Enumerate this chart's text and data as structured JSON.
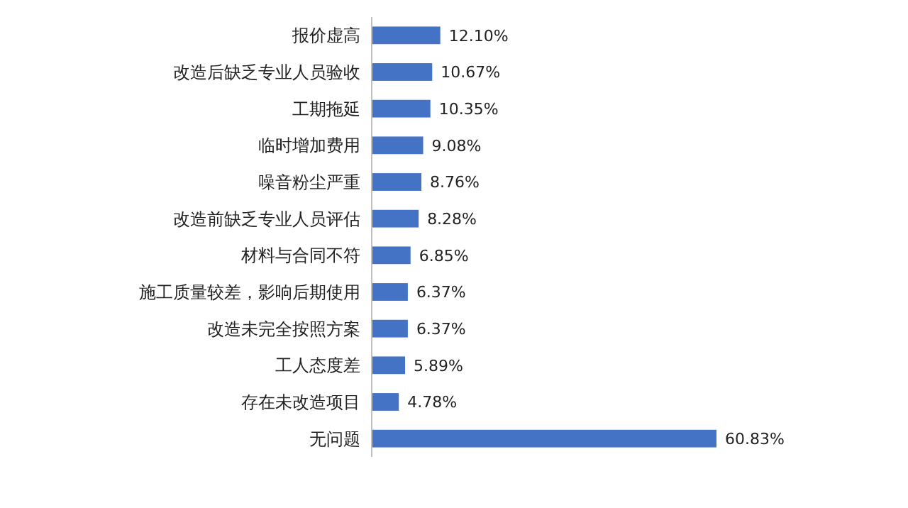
{
  "chart_data": {
    "type": "bar",
    "orientation": "horizontal",
    "categories": [
      "报价虚高",
      "改造后缺乏专业人员验收",
      "工期拖延",
      "临时增加费用",
      "噪音粉尘严重",
      "改造前缺乏专业人员评估",
      "材料与合同不符",
      "施工质量较差，影响后期使用",
      "改造未完全按照方案",
      "工人态度差",
      "存在未改造项目",
      "无问题"
    ],
    "values": [
      12.1,
      10.67,
      10.35,
      9.08,
      8.76,
      8.28,
      6.85,
      6.37,
      6.37,
      5.89,
      4.78,
      60.83
    ],
    "value_labels": [
      "12.10%",
      "10.67%",
      "10.35%",
      "9.08%",
      "8.76%",
      "8.28%",
      "6.85%",
      "6.37%",
      "6.37%",
      "5.89%",
      "4.78%",
      "60.83%"
    ],
    "color": "#4472c4"
  }
}
